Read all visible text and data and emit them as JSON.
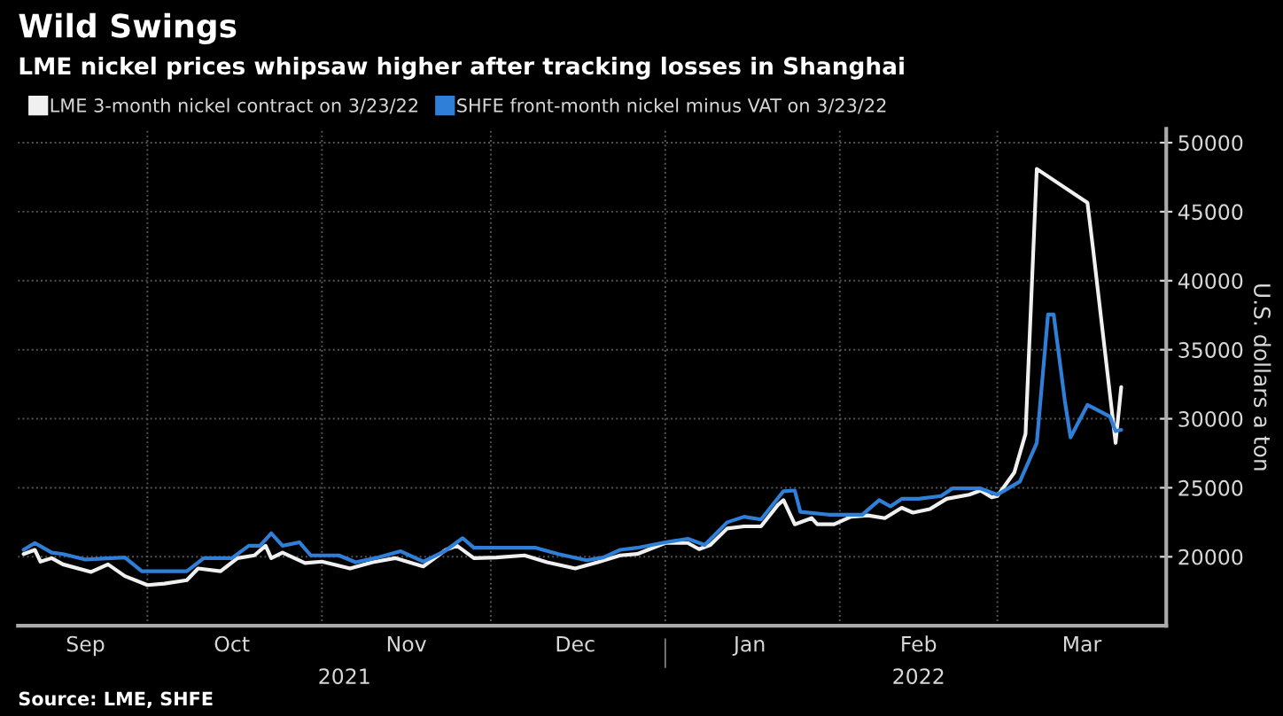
{
  "chart_data": {
    "type": "line",
    "title": "Wild Swings",
    "subtitle": "LME nickel prices whipsaw higher after tracking losses in Shanghai",
    "ylabel": "U.S. dollars a ton",
    "annotations": [
      "Source: LME, SHFE"
    ],
    "series": [
      {
        "name": "LME 3-month nickel contract on 3/23/22",
        "color": "#f0f0f0",
        "x": [
          "2021-09-09",
          "2021-09-11",
          "2021-09-12",
          "2021-09-14",
          "2021-09-16",
          "2021-09-21",
          "2021-09-24",
          "2021-09-27",
          "2021-10-01",
          "2021-10-04",
          "2021-10-08",
          "2021-10-10",
          "2021-10-14",
          "2021-10-17",
          "2021-10-20",
          "2021-10-22",
          "2021-10-23",
          "2021-10-25",
          "2021-10-29",
          "2021-11-01",
          "2021-11-06",
          "2021-11-10",
          "2021-11-14",
          "2021-11-19",
          "2021-11-23",
          "2021-11-25",
          "2021-11-28",
          "2021-12-02",
          "2021-12-07",
          "2021-12-11",
          "2021-12-16",
          "2021-12-20",
          "2021-12-24",
          "2021-12-27",
          "2022-01-01",
          "2022-01-05",
          "2022-01-07",
          "2022-01-09",
          "2022-01-12",
          "2022-01-15",
          "2022-01-18",
          "2022-01-21",
          "2022-01-22",
          "2022-01-24",
          "2022-01-27",
          "2022-01-28",
          "2022-01-31",
          "2022-02-03",
          "2022-02-06",
          "2022-02-09",
          "2022-02-12",
          "2022-02-14",
          "2022-02-17",
          "2022-02-20",
          "2022-02-24",
          "2022-02-26",
          "2022-02-28",
          "2022-03-01",
          "2022-03-04",
          "2022-03-06",
          "2022-03-08",
          "2022-03-17",
          "2022-03-18",
          "2022-03-22",
          "2022-03-23"
        ],
        "values": [
          20200,
          20500,
          19650,
          19900,
          19450,
          18900,
          19450,
          18600,
          17950,
          18050,
          18300,
          19150,
          18950,
          19900,
          20100,
          20800,
          19900,
          20300,
          19550,
          19650,
          19150,
          19600,
          19900,
          19300,
          20500,
          20800,
          19900,
          19950,
          20100,
          19600,
          19150,
          19600,
          20100,
          20200,
          21000,
          21000,
          20550,
          20850,
          22050,
          22200,
          22200,
          23750,
          24100,
          22350,
          22800,
          22350,
          22350,
          22900,
          23000,
          22800,
          23550,
          23200,
          23450,
          24200,
          24500,
          24800,
          24300,
          24400,
          26100,
          28900,
          48100,
          45650,
          42300,
          28250,
          32300
        ]
      },
      {
        "name": "SHFE front-month nickel minus VAT on 3/23/22",
        "color": "#2f7fd8",
        "x": [
          "2021-09-09",
          "2021-09-11",
          "2021-09-14",
          "2021-09-16",
          "2021-09-20",
          "2021-09-27",
          "2021-09-30",
          "2021-10-08",
          "2021-10-11",
          "2021-10-16",
          "2021-10-19",
          "2021-10-21",
          "2021-10-23",
          "2021-10-25",
          "2021-10-28",
          "2021-10-30",
          "2021-11-04",
          "2021-11-07",
          "2021-11-11",
          "2021-11-15",
          "2021-11-19",
          "2021-11-23",
          "2021-11-26",
          "2021-11-28",
          "2021-12-03",
          "2021-12-09",
          "2021-12-13",
          "2021-12-18",
          "2021-12-21",
          "2021-12-24",
          "2021-12-27",
          "2022-01-01",
          "2022-01-05",
          "2022-01-08",
          "2022-01-12",
          "2022-01-15",
          "2022-01-18",
          "2022-01-22",
          "2022-01-24",
          "2022-01-25",
          "2022-01-30",
          "2022-02-05",
          "2022-02-08",
          "2022-02-10",
          "2022-02-12",
          "2022-02-15",
          "2022-02-19",
          "2022-02-21",
          "2022-02-26",
          "2022-03-01",
          "2022-03-05",
          "2022-03-08",
          "2022-03-10",
          "2022-03-11",
          "2022-03-13",
          "2022-03-14",
          "2022-03-17",
          "2022-03-18",
          "2022-03-21",
          "2022-03-22",
          "2022-03-23"
        ],
        "values": [
          20500,
          21000,
          20300,
          20200,
          19800,
          19950,
          18950,
          18950,
          19900,
          19900,
          20800,
          20800,
          21700,
          20800,
          21050,
          20100,
          20100,
          19600,
          19950,
          20400,
          19650,
          20450,
          21350,
          20650,
          20650,
          20650,
          20200,
          19750,
          19950,
          20500,
          20650,
          21050,
          21300,
          20850,
          22500,
          22900,
          22700,
          24750,
          24800,
          23250,
          23050,
          23050,
          24100,
          23650,
          24200,
          24200,
          24400,
          24950,
          24950,
          24500,
          25450,
          28250,
          37550,
          37550,
          31250,
          28650,
          31000,
          30800,
          30150,
          29100,
          29200
        ]
      }
    ],
    "xlim": [
      "2021-09-08",
      "2022-03-31"
    ],
    "xticks": [
      {
        "value": "2021-09-20",
        "label": "Sep"
      },
      {
        "value": "2021-10-01",
        "label": null
      },
      {
        "value": "2021-10-16",
        "label": "Oct"
      },
      {
        "value": "2021-11-01",
        "label": null
      },
      {
        "value": "2021-11-16",
        "label": "Nov"
      },
      {
        "value": "2021-12-01",
        "label": null
      },
      {
        "value": "2021-12-16",
        "label": "Dec"
      },
      {
        "value": "2022-01-01",
        "label": null
      },
      {
        "value": "2022-01-16",
        "label": "Jan"
      },
      {
        "value": "2022-02-01",
        "label": null
      },
      {
        "value": "2022-02-15",
        "label": "Feb"
      },
      {
        "value": "2022-03-01",
        "label": null
      },
      {
        "value": "2022-03-16",
        "label": "Mar"
      }
    ],
    "x2lim": [
      "2021-09-08",
      "2022-03-31"
    ],
    "x2ticks": [
      {
        "value": "2021-11-05",
        "label": "2021"
      },
      {
        "value": "2022-01-01",
        "label": null
      },
      {
        "value": "2022-02-15",
        "label": "2022"
      }
    ],
    "ylim": [
      15000,
      51000
    ],
    "yticks": [
      20000,
      25000,
      30000,
      35000,
      40000,
      45000,
      50000
    ],
    "grid": true,
    "legend": "top left",
    "marker": "none",
    "line_style": "solid"
  }
}
